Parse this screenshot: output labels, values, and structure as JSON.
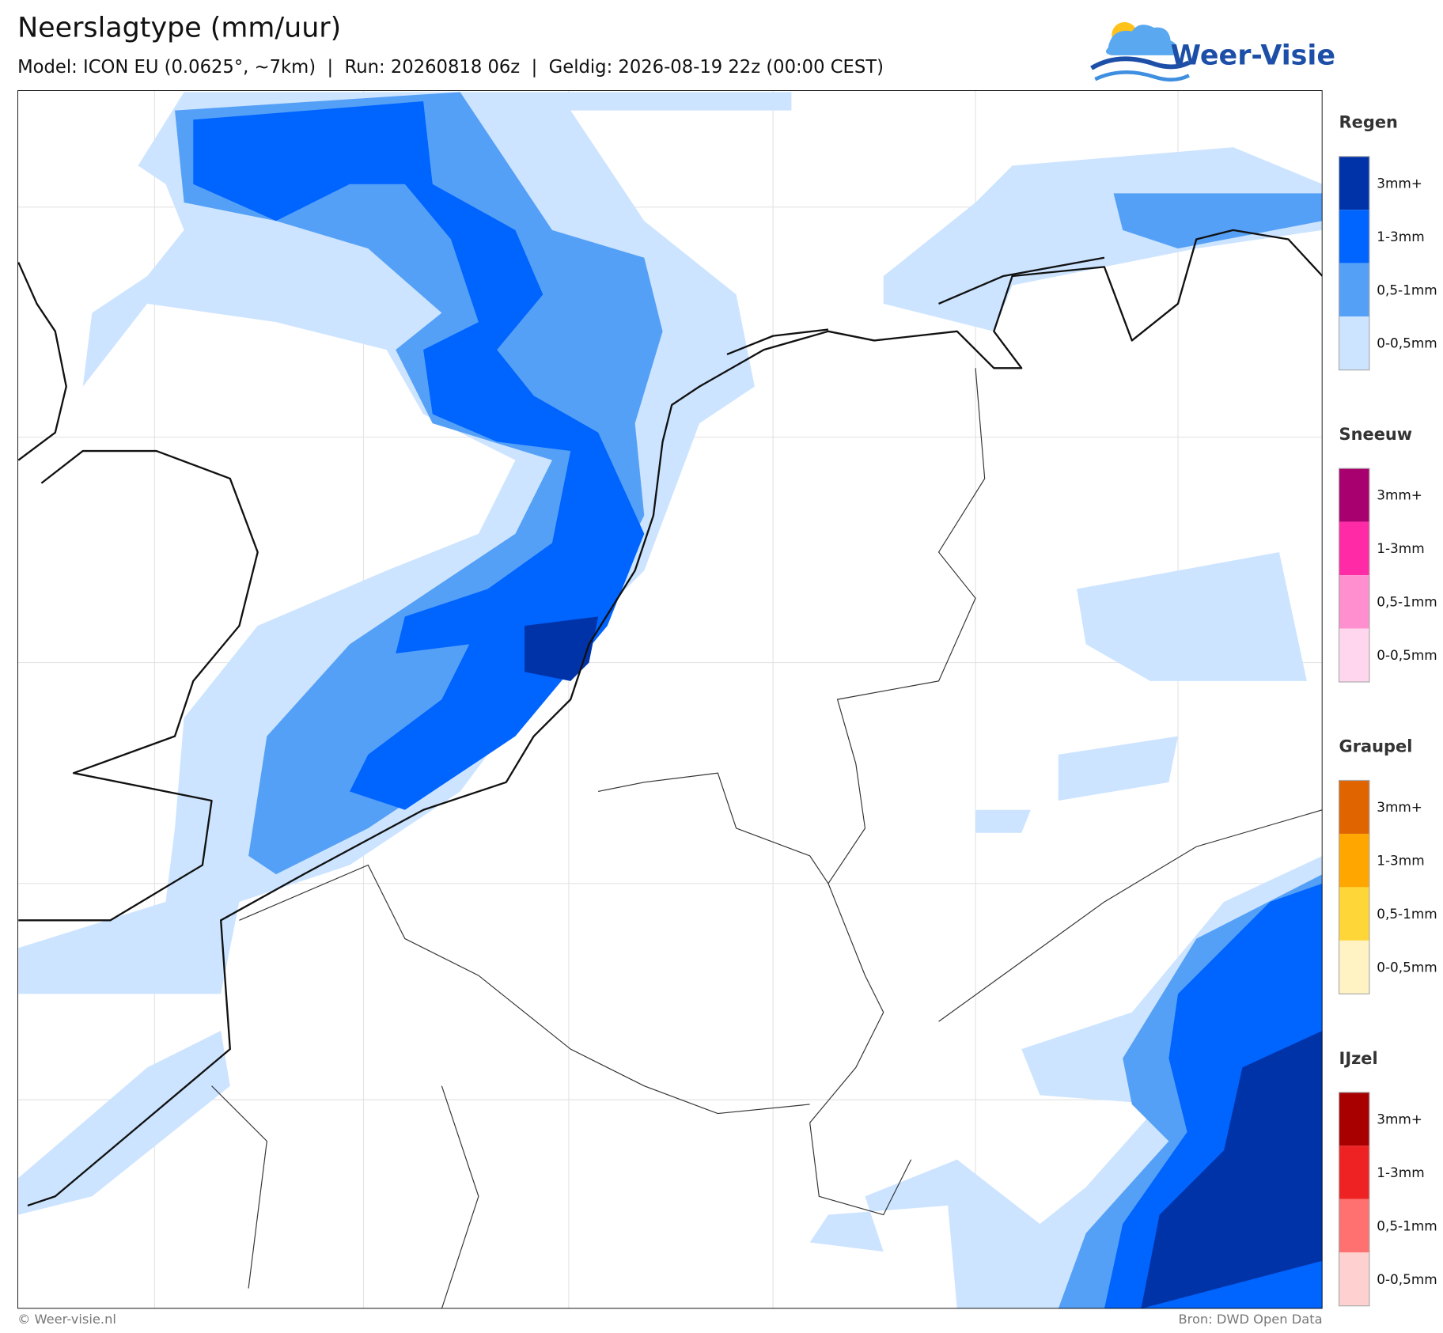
{
  "header": {
    "title": "Neerslagtype (mm/uur)",
    "subtitle": "Model: ICON EU (0.0625°, ~7km)  |  Run: 20260818 06z  |  Geldig: 2026-08-19 22z (00:00 CEST)"
  },
  "logo": {
    "text": "Weer-Visie"
  },
  "legend": {
    "groups": [
      {
        "title": "Regen",
        "items": [
          {
            "label": "3mm+",
            "color": "#0033a8"
          },
          {
            "label": "1-3mm",
            "color": "#0064ff"
          },
          {
            "label": "0,5-1mm",
            "color": "#55a0f7"
          },
          {
            "label": "0-0,5mm",
            "color": "#cce4ff"
          }
        ]
      },
      {
        "title": "Sneeuw",
        "items": [
          {
            "label": "3mm+",
            "color": "#a8006e"
          },
          {
            "label": "1-3mm",
            "color": "#ff2aa6"
          },
          {
            "label": "0,5-1mm",
            "color": "#ff8fcf"
          },
          {
            "label": "0-0,5mm",
            "color": "#ffd6ee"
          }
        ]
      },
      {
        "title": "Graupel",
        "items": [
          {
            "label": "3mm+",
            "color": "#e06400"
          },
          {
            "label": "1-3mm",
            "color": "#ffa600"
          },
          {
            "label": "0,5-1mm",
            "color": "#ffd638"
          },
          {
            "label": "0-0,5mm",
            "color": "#fff3c4"
          }
        ]
      },
      {
        "title": "IJzel",
        "items": [
          {
            "label": "3mm+",
            "color": "#a80000"
          },
          {
            "label": "1-3mm",
            "color": "#ee2222"
          },
          {
            "label": "0,5-1mm",
            "color": "#ff7070"
          },
          {
            "label": "0-0,5mm",
            "color": "#ffd0d0"
          }
        ]
      }
    ]
  },
  "footer": {
    "left": "© Weer-visie.nl",
    "right": "Bron: DWD Open Data"
  }
}
